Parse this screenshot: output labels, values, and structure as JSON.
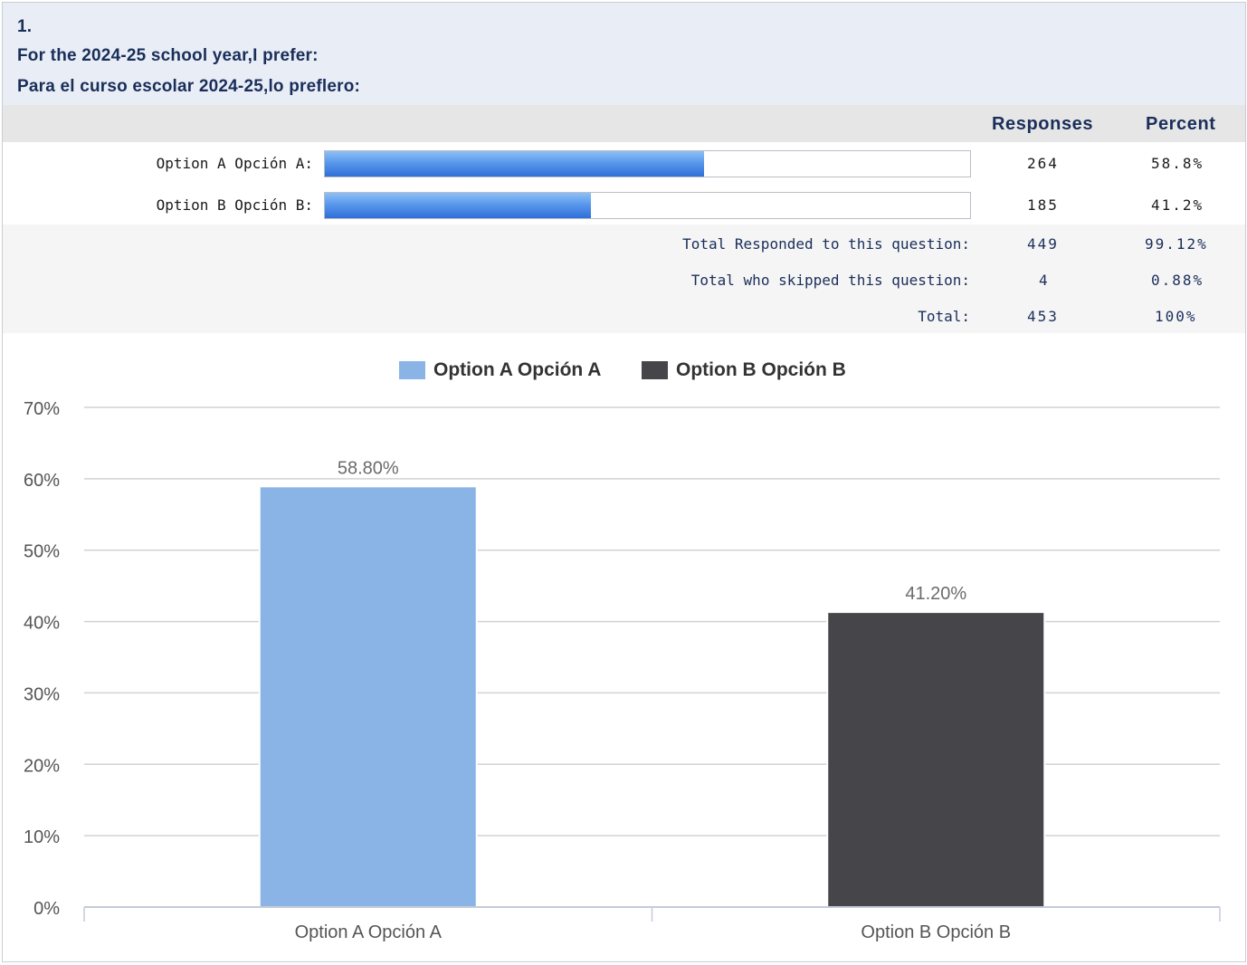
{
  "question": {
    "number": "1.",
    "line_en": "For the 2024-25 school year,I prefer:",
    "line_es": "Para el curso escolar 2024-25,lo preflero:"
  },
  "table": {
    "col_responses": "Responses",
    "col_percent": "Percent",
    "rows": [
      {
        "label": "Option A Opción A:",
        "responses": "264",
        "percent": "58.8%",
        "fill": 0.588
      },
      {
        "label": "Option B Opción B:",
        "responses": "185",
        "percent": "41.2%",
        "fill": 0.412
      }
    ],
    "totals": [
      {
        "label": "Total Responded to this question:",
        "responses": "449",
        "percent": "99.12%"
      },
      {
        "label": "Total who skipped this question:",
        "responses": "4",
        "percent": "0.88%"
      },
      {
        "label": "Total:",
        "responses": "453",
        "percent": "100%"
      }
    ]
  },
  "colors": {
    "series_a": "#8ab4e6",
    "series_b": "#45454a",
    "bar_fill": "#3b7be0"
  },
  "chart_data": {
    "type": "bar",
    "categories": [
      "Option A Opción A",
      "Option B Opción B"
    ],
    "values": [
      58.8,
      41.2
    ],
    "data_labels": [
      "58.80%",
      "41.20%"
    ],
    "legend": [
      "Option A Opción A",
      "Option B Opción B"
    ],
    "legend_position": "top-center",
    "ylim": [
      0,
      70
    ],
    "yticks": [
      0,
      10,
      20,
      30,
      40,
      50,
      60,
      70
    ],
    "ytick_labels": [
      "0%",
      "10%",
      "20%",
      "30%",
      "40%",
      "50%",
      "60%",
      "70%"
    ],
    "grid": true,
    "title": "",
    "xlabel": "",
    "ylabel": ""
  }
}
